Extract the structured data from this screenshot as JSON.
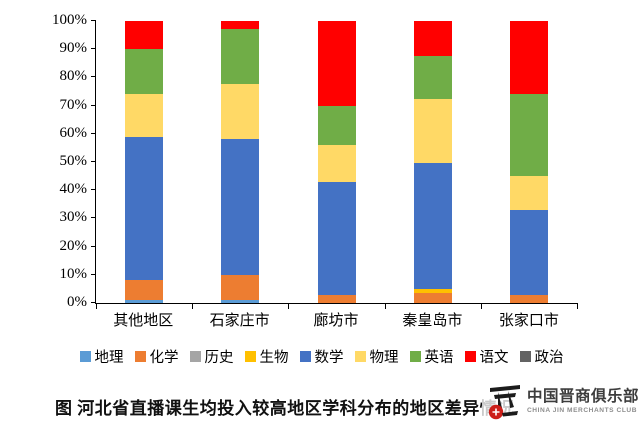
{
  "caption": "图 河北省直播课生均投入较高地区学科分布的地区差异情况",
  "watermark": {
    "cn": "中国晋商俱乐部",
    "en": "CHINA JIN MERCHANTS CLUB",
    "logo_red": "#cc1f1a",
    "logo_black": "#1c1c1c"
  },
  "chart_data": {
    "type": "bar",
    "variant": "stacked-100-percent",
    "grid": false,
    "legend_position": "bottom",
    "ylim": [
      0,
      100
    ],
    "yticks": [
      "0%",
      "10%",
      "20%",
      "30%",
      "40%",
      "50%",
      "60%",
      "70%",
      "80%",
      "90%",
      "100%"
    ],
    "categories": [
      "其他地区",
      "石家庄市",
      "廊坊市",
      "秦皇岛市",
      "张家口市"
    ],
    "series": [
      {
        "name": "地理",
        "color": "#5B9BD5",
        "values": [
          1,
          1,
          0,
          0,
          0
        ]
      },
      {
        "name": "化学",
        "color": "#ED7D31",
        "values": [
          7,
          9,
          3,
          3.5,
          3
        ]
      },
      {
        "name": "历史",
        "color": "#A5A5A5",
        "values": [
          0,
          0,
          0,
          0,
          0
        ]
      },
      {
        "name": "生物",
        "color": "#FFC000",
        "values": [
          0,
          0,
          0,
          1.5,
          0
        ]
      },
      {
        "name": "数学",
        "color": "#4472C4",
        "values": [
          51,
          48,
          40,
          44.5,
          30
        ]
      },
      {
        "name": "物理",
        "color": "#FFD966",
        "values": [
          15,
          19.5,
          13,
          23,
          12
        ]
      },
      {
        "name": "英语",
        "color": "#70AD47",
        "values": [
          16,
          19.5,
          14,
          15,
          29
        ]
      },
      {
        "name": "语文",
        "color": "#FF0000",
        "values": [
          10,
          3,
          30,
          12.5,
          26
        ]
      },
      {
        "name": "政治",
        "color": "#636363",
        "values": [
          0,
          0,
          0,
          0,
          0
        ]
      }
    ]
  }
}
